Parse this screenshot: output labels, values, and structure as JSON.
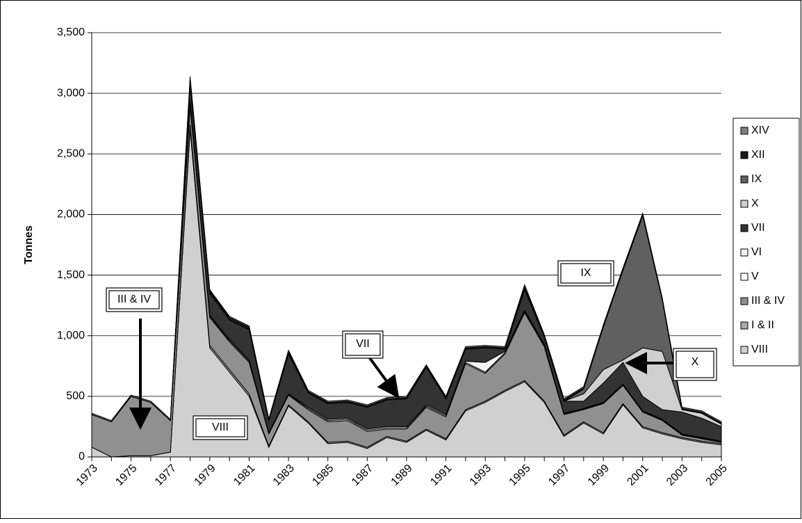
{
  "chart_data": {
    "type": "stacked-area",
    "y_label": "Tonnes",
    "categories": [
      "1973",
      null,
      "1975",
      null,
      "1977",
      null,
      "1979",
      null,
      "1981",
      null,
      "1983",
      null,
      "1985",
      null,
      "1987",
      null,
      "1989",
      null,
      "1991",
      null,
      "1993",
      null,
      "1995",
      null,
      "1997",
      null,
      "1999",
      null,
      "2001",
      null,
      "2003",
      null,
      "2005"
    ],
    "ylim": [
      0,
      3500
    ],
    "yticks": [
      0,
      500,
      {
        "value": 1000,
        "label": "1,000"
      },
      {
        "value": 1500,
        "label": "1,500"
      },
      {
        "value": 2000,
        "label": "2,000"
      },
      {
        "value": 2500,
        "label": "2,500"
      },
      {
        "value": 3000,
        "label": "3,000"
      },
      {
        "value": 3500,
        "label": "3,500"
      }
    ],
    "grid": true,
    "legend": "right",
    "series": [
      {
        "name": "VIII",
        "color": "#d0d0d0",
        "values": [
          80,
          0,
          10,
          10,
          40,
          2700,
          900,
          700,
          500,
          80,
          420,
          280,
          110,
          120,
          70,
          160,
          120,
          220,
          140,
          380,
          450,
          540,
          620,
          450,
          170,
          280,
          190,
          430,
          240,
          190,
          150,
          120,
          100
        ]
      },
      {
        "name": "I & II",
        "color": "#a8a8a8",
        "values": [
          0,
          0,
          0,
          0,
          0,
          40,
          20,
          20,
          20,
          10,
          10,
          10,
          10,
          10,
          10,
          10,
          10,
          10,
          10,
          10,
          10,
          10,
          10,
          10,
          10,
          10,
          10,
          10,
          10,
          10,
          10,
          10,
          10
        ]
      },
      {
        "name": "III & IV",
        "color": "#909090",
        "values": [
          270,
          290,
          490,
          440,
          260,
          150,
          230,
          230,
          260,
          100,
          80,
          100,
          170,
          170,
          130,
          60,
          100,
          180,
          180,
          380,
          230,
          300,
          560,
          450,
          170,
          100,
          240,
          150,
          120,
          100,
          20,
          20,
          10
        ]
      },
      {
        "name": "V",
        "color": "#ffffff",
        "values": [
          0,
          0,
          0,
          0,
          0,
          20,
          10,
          10,
          10,
          5,
          5,
          10,
          10,
          10,
          10,
          10,
          10,
          10,
          10,
          10,
          10,
          10,
          10,
          10,
          5,
          5,
          5,
          5,
          5,
          5,
          5,
          5,
          5
        ]
      },
      {
        "name": "VI",
        "color": "#f2f2f2",
        "values": [
          0,
          0,
          0,
          0,
          0,
          20,
          10,
          10,
          10,
          5,
          5,
          10,
          10,
          10,
          10,
          10,
          10,
          10,
          10,
          10,
          80,
          10,
          10,
          10,
          5,
          5,
          5,
          5,
          5,
          5,
          5,
          5,
          5
        ]
      },
      {
        "name": "VII",
        "color": "#333333",
        "values": [
          0,
          0,
          0,
          0,
          0,
          150,
          180,
          160,
          250,
          100,
          330,
          120,
          130,
          130,
          180,
          220,
          230,
          310,
          130,
          100,
          120,
          20,
          170,
          60,
          100,
          60,
          160,
          180,
          120,
          80,
          180,
          160,
          120
        ]
      },
      {
        "name": "X",
        "color": "#d0d0d0",
        "values": [
          0,
          0,
          0,
          0,
          0,
          0,
          0,
          0,
          0,
          0,
          0,
          0,
          0,
          0,
          0,
          0,
          0,
          0,
          0,
          0,
          0,
          0,
          0,
          0,
          0,
          60,
          110,
          20,
          400,
          480,
          20,
          40,
          20
        ]
      },
      {
        "name": "IX",
        "color": "#606060",
        "values": [
          0,
          0,
          0,
          0,
          0,
          0,
          0,
          0,
          0,
          0,
          0,
          0,
          0,
          0,
          0,
          0,
          0,
          0,
          0,
          0,
          0,
          0,
          0,
          0,
          0,
          40,
          350,
          740,
          1090,
          420,
          0,
          0,
          0
        ]
      },
      {
        "name": "XII",
        "color": "#1a1a1a",
        "values": [
          0,
          0,
          0,
          0,
          0,
          40,
          20,
          20,
          20,
          10,
          20,
          10,
          10,
          10,
          10,
          10,
          10,
          10,
          10,
          10,
          10,
          10,
          20,
          10,
          10,
          10,
          10,
          10,
          10,
          10,
          10,
          10,
          10
        ]
      },
      {
        "name": "XIV",
        "color": "#808080",
        "values": [
          10,
          10,
          10,
          10,
          10,
          20,
          10,
          10,
          10,
          5,
          10,
          10,
          10,
          10,
          10,
          10,
          10,
          10,
          10,
          10,
          10,
          10,
          20,
          10,
          10,
          10,
          10,
          10,
          10,
          10,
          10,
          10,
          10
        ]
      }
    ],
    "annotations": [
      "III & IV",
      "VIII",
      "VII",
      "IX",
      "X"
    ]
  }
}
